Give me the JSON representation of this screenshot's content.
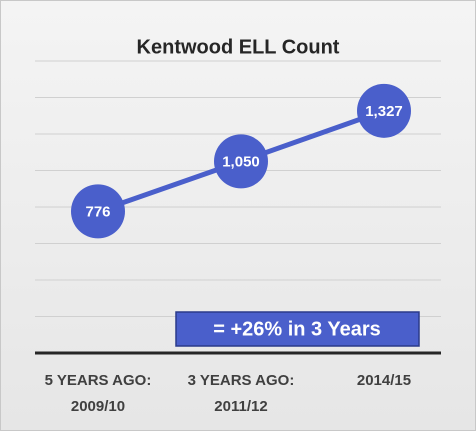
{
  "chart_data": {
    "type": "line",
    "title": "Kentwood ELL Count",
    "categories": [
      "5 YEARS AGO:\n2009/10",
      "3 YEARS AGO:\n2011/12",
      "2014/15"
    ],
    "values": [
      776,
      1050,
      1327
    ],
    "value_labels": [
      "776",
      "1,050",
      "1,327"
    ],
    "color": "#4a5fcb",
    "ylim": [
      0,
      1600
    ],
    "yticks": [
      0,
      200,
      400,
      600,
      800,
      1000,
      1200,
      1400,
      1600
    ],
    "grid": true,
    "annotation": "= +26% in 3 Years"
  }
}
